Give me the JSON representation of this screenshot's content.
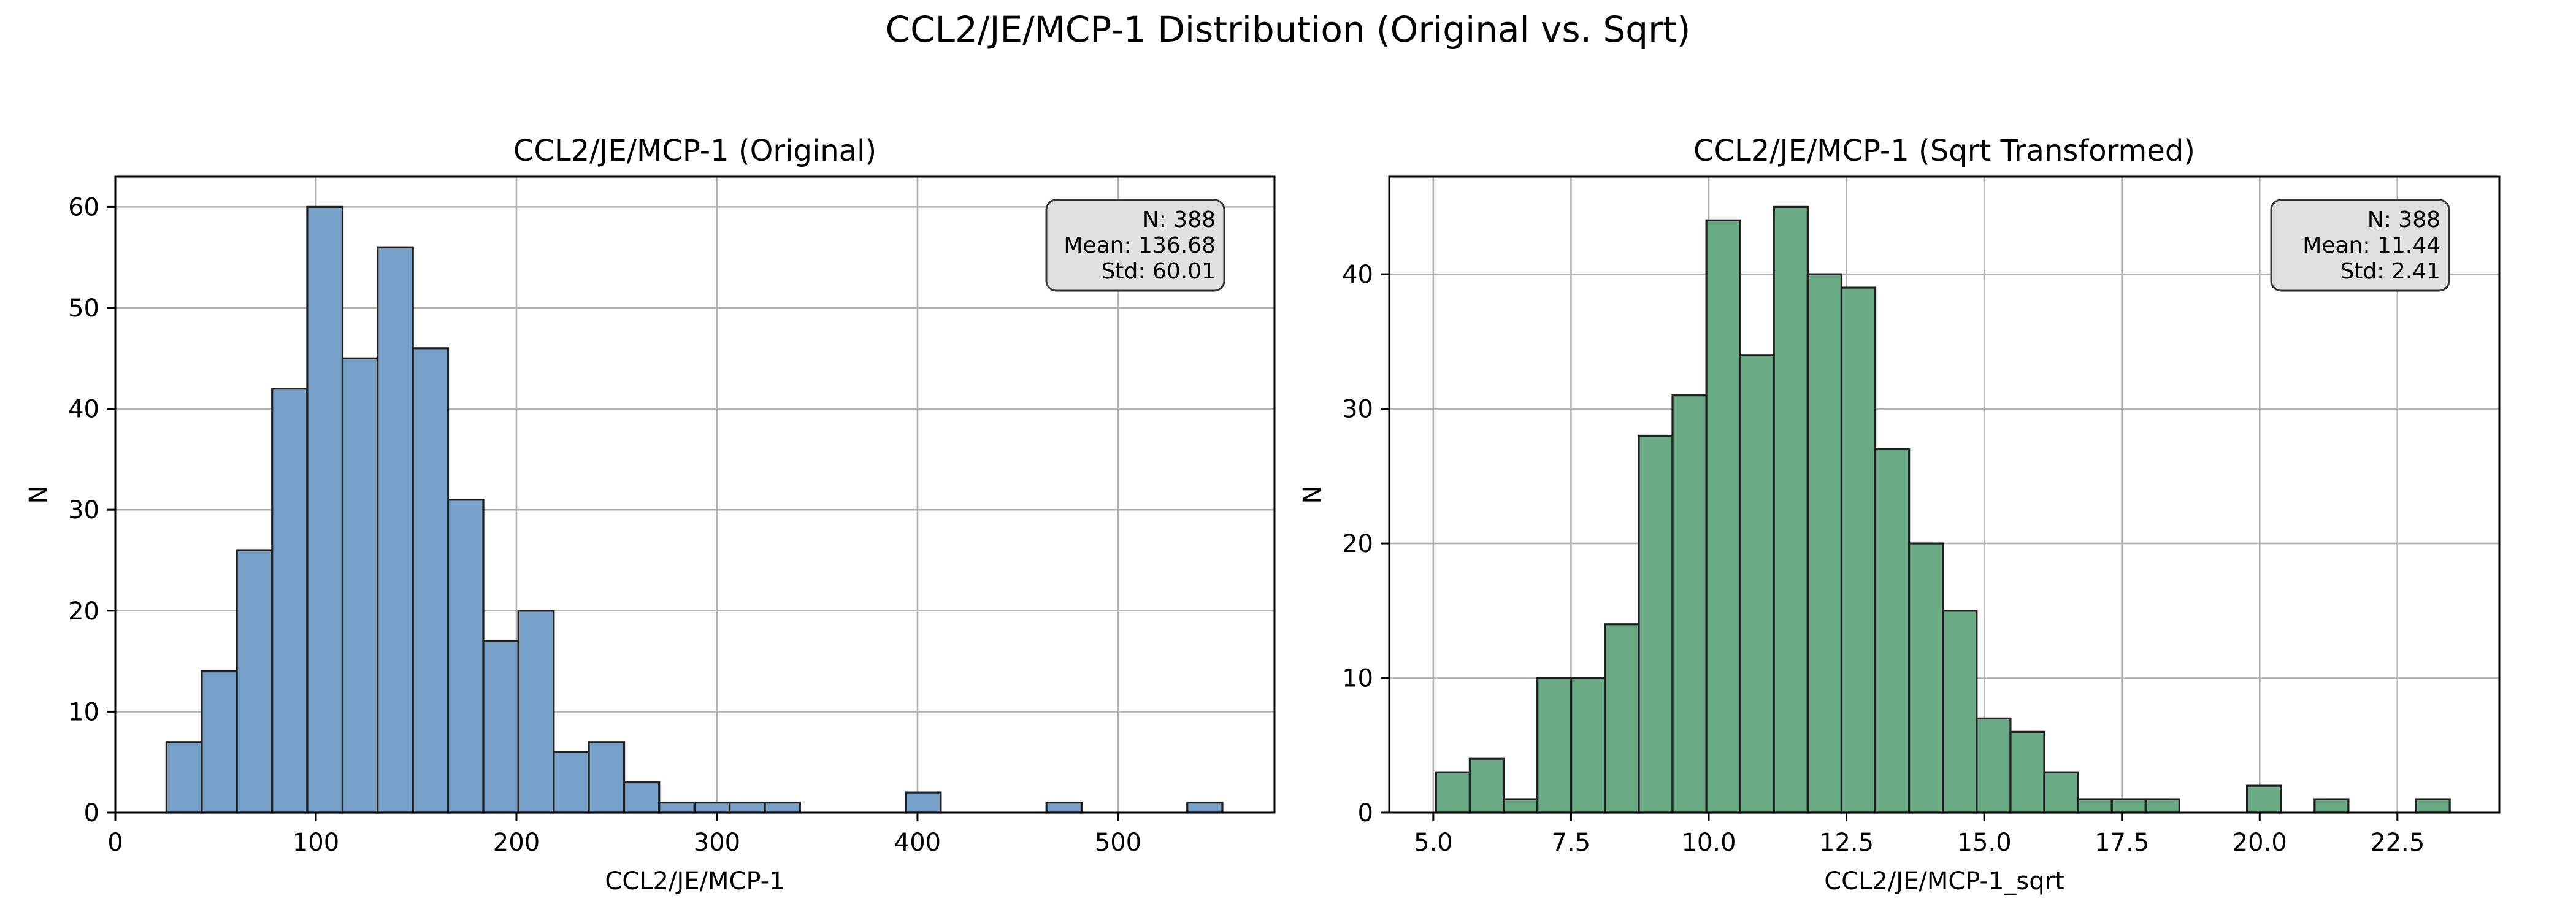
{
  "suptitle": "CCL2/JE/MCP-1 Distribution (Original vs. Sqrt)",
  "chart_data": [
    {
      "type": "bar",
      "title": "CCL2/JE/MCP-1 (Original)",
      "xlabel": "CCL2/JE/MCP-1",
      "ylabel": "N",
      "xlim": [
        0,
        578
      ],
      "ylim": [
        0,
        63
      ],
      "xticks": [
        0,
        100,
        200,
        300,
        400,
        500
      ],
      "yticks": [
        0,
        10,
        20,
        30,
        40,
        50,
        60
      ],
      "grid": true,
      "bar_color": "#77a1c8",
      "bin_edges": [
        25.5,
        43.1,
        60.6,
        78.2,
        95.7,
        113.3,
        130.8,
        148.4,
        165.9,
        183.5,
        201.0,
        218.6,
        236.1,
        253.7,
        271.2,
        288.8,
        306.3,
        323.9,
        341.4,
        359.0,
        376.5,
        394.1,
        411.6,
        429.2,
        446.7,
        464.3,
        481.8,
        499.4,
        516.9,
        534.5,
        552.0
      ],
      "counts": [
        7,
        14,
        26,
        42,
        60,
        45,
        56,
        46,
        31,
        17,
        20,
        6,
        7,
        3,
        1,
        1,
        1,
        1,
        0,
        0,
        0,
        2,
        0,
        0,
        0,
        1,
        0,
        0,
        0,
        1
      ],
      "stats_box": {
        "position": "top-right",
        "lines": [
          "N: 388",
          "Mean: 136.68",
          "Std: 60.01"
        ]
      }
    },
    {
      "type": "bar",
      "title": "CCL2/JE/MCP-1 (Sqrt Transformed)",
      "xlabel": "CCL2/JE/MCP-1_sqrt",
      "ylabel": "N",
      "xlim": [
        4.2,
        24.35
      ],
      "ylim": [
        0,
        47.25
      ],
      "xticks": [
        5.0,
        7.5,
        10.0,
        12.5,
        15.0,
        17.5,
        20.0,
        22.5
      ],
      "yticks": [
        0,
        10,
        20,
        30,
        40
      ],
      "grid": true,
      "bar_color": "#6aaa85",
      "bin_edges": [
        5.05,
        5.663,
        6.277,
        6.89,
        7.503,
        8.117,
        8.73,
        9.343,
        9.957,
        10.57,
        11.183,
        11.797,
        12.41,
        13.023,
        13.637,
        14.25,
        14.863,
        15.477,
        16.09,
        16.703,
        17.317,
        17.93,
        18.543,
        19.157,
        19.77,
        20.383,
        20.997,
        21.61,
        22.223,
        22.837,
        23.45
      ],
      "counts": [
        3,
        4,
        1,
        10,
        10,
        14,
        28,
        31,
        44,
        34,
        45,
        40,
        39,
        27,
        20,
        15,
        7,
        6,
        3,
        1,
        1,
        1,
        0,
        0,
        2,
        0,
        1,
        0,
        0,
        1
      ],
      "stats_box": {
        "position": "top-right",
        "lines": [
          "N: 388",
          "Mean: 11.44",
          "Std: 2.41"
        ]
      }
    }
  ]
}
